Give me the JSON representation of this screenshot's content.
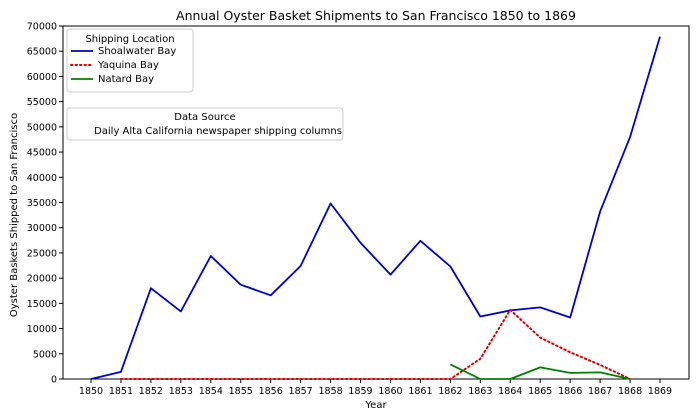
{
  "chart_data": {
    "type": "line",
    "title": "Annual Oyster Basket Shipments to San Francisco 1850 to 1869",
    "xlabel": "Year",
    "ylabel": "Oyster Baskets Shipped to San Francisco",
    "x": [
      1850,
      1851,
      1852,
      1853,
      1854,
      1855,
      1856,
      1857,
      1858,
      1859,
      1860,
      1861,
      1862,
      1863,
      1864,
      1865,
      1866,
      1867,
      1868,
      1869
    ],
    "ylim": [
      0,
      70000
    ],
    "yticks": [
      0,
      5000,
      10000,
      15000,
      20000,
      25000,
      30000,
      35000,
      40000,
      45000,
      50000,
      55000,
      60000,
      65000,
      70000
    ],
    "grid": false,
    "legend_placement": "top-left",
    "legend_title": "Shipping Location",
    "series": [
      {
        "name": "Shoalwater Bay",
        "color": "#0000cc",
        "style": "solid",
        "values": [
          0,
          1400,
          18000,
          13400,
          24400,
          18700,
          16600,
          22400,
          34800,
          27000,
          20700,
          27400,
          22300,
          12400,
          13600,
          14200,
          12200,
          33200,
          48000,
          67900
        ]
      },
      {
        "name": "Yaquina Bay",
        "color": "#dd0000",
        "style": "dotted",
        "values": [
          null,
          0,
          0,
          0,
          0,
          0,
          0,
          0,
          0,
          0,
          0,
          0,
          0,
          4000,
          13700,
          8200,
          5300,
          2800,
          0,
          null
        ]
      },
      {
        "name": "Natard Bay",
        "color": "#008000",
        "style": "solid",
        "values": [
          null,
          null,
          null,
          null,
          null,
          null,
          null,
          null,
          null,
          null,
          null,
          null,
          2900,
          0,
          0,
          2300,
          1200,
          1300,
          0,
          null
        ]
      }
    ],
    "annotation": {
      "title": "Data Source",
      "text": "Daily Alta California newspaper shipping columns"
    }
  }
}
